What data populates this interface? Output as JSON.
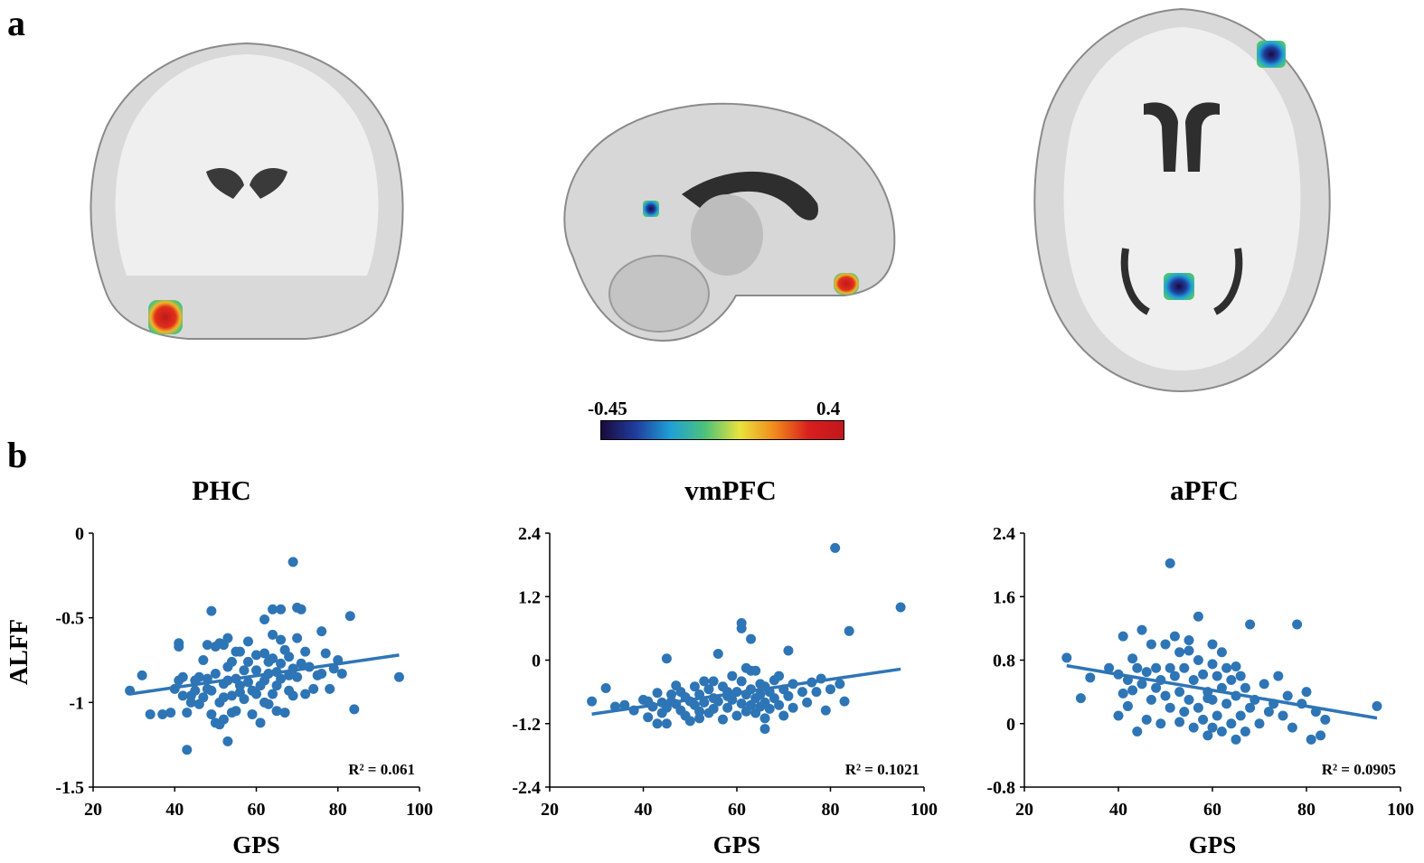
{
  "panels": {
    "a": "a",
    "b": "b"
  },
  "colorbar": {
    "min_label": "-0.45",
    "max_label": "0.4",
    "colors": [
      "#1a0a3c",
      "#1f3d9e",
      "#1fa0d6",
      "#4cc27a",
      "#e9e33c",
      "#f08a1c",
      "#d81e1e",
      "#c0181c"
    ]
  },
  "brain_images": [
    {
      "view": "coronal",
      "blobs": [
        {
          "color_scale": "hot"
        }
      ]
    },
    {
      "view": "sagittal",
      "blobs": [
        {
          "color_scale": "cool"
        },
        {
          "color_scale": "hot"
        }
      ]
    },
    {
      "view": "axial",
      "blobs": [
        {
          "color_scale": "cool"
        },
        {
          "color_scale": "cool"
        }
      ]
    }
  ],
  "ylabel": "ALFF",
  "point_color": "#2e75b6",
  "chart_data": [
    {
      "type": "scatter",
      "title": "PHC",
      "xlabel": "GPS",
      "ylabel": "ALFF",
      "xlim": [
        20,
        100
      ],
      "ylim": [
        -1.5,
        0
      ],
      "xticks": [
        "20",
        "40",
        "60",
        "80",
        "100"
      ],
      "yticks": [
        "-1.5",
        "-1",
        "-0.5",
        "0"
      ],
      "trendline": {
        "x": [
          29,
          95
        ],
        "y": [
          -0.95,
          -0.72
        ]
      },
      "annotation": "R² = 0.061",
      "points": [
        [
          29,
          -0.93
        ],
        [
          32,
          -0.84
        ],
        [
          34,
          -1.07
        ],
        [
          37,
          -1.07
        ],
        [
          39,
          -1.06
        ],
        [
          40,
          -0.92
        ],
        [
          41,
          -0.65
        ],
        [
          41,
          -0.67
        ],
        [
          41,
          -0.87
        ],
        [
          42,
          -0.96
        ],
        [
          42,
          -0.85
        ],
        [
          43,
          -1.28
        ],
        [
          43,
          -1.06
        ],
        [
          44,
          -0.96
        ],
        [
          44,
          -1.0
        ],
        [
          45,
          -0.87
        ],
        [
          45,
          -0.93
        ],
        [
          46,
          -0.85
        ],
        [
          46,
          -1.01
        ],
        [
          47,
          -0.75
        ],
        [
          47,
          -0.97
        ],
        [
          48,
          -0.86
        ],
        [
          48,
          -0.92
        ],
        [
          49,
          -0.46
        ],
        [
          49,
          -0.93
        ],
        [
          49,
          -1.07
        ],
        [
          50,
          -0.67
        ],
        [
          50,
          -0.83
        ],
        [
          50,
          -1.12
        ],
        [
          51,
          -0.65
        ],
        [
          51,
          -1.0
        ],
        [
          51,
          -1.13
        ],
        [
          52,
          -0.66
        ],
        [
          52,
          -0.89
        ],
        [
          52,
          -0.97
        ],
        [
          52,
          -1.1
        ],
        [
          53,
          -0.62
        ],
        [
          53,
          -0.79
        ],
        [
          53,
          -0.87
        ],
        [
          53,
          -1.23
        ],
        [
          54,
          -0.76
        ],
        [
          54,
          -0.96
        ],
        [
          54,
          -1.06
        ],
        [
          55,
          -0.7
        ],
        [
          55,
          -0.86
        ],
        [
          55,
          -1.05
        ],
        [
          56,
          -0.7
        ],
        [
          56,
          -0.94
        ],
        [
          57,
          -0.81
        ],
        [
          57,
          -0.98
        ],
        [
          58,
          -0.64
        ],
        [
          58,
          -0.76
        ],
        [
          58,
          -0.88
        ],
        [
          59,
          -0.93
        ],
        [
          59,
          -1.07
        ],
        [
          60,
          -0.72
        ],
        [
          60,
          -0.81
        ],
        [
          61,
          -0.9
        ],
        [
          61,
          -1.12
        ],
        [
          62,
          -0.51
        ],
        [
          62,
          -0.71
        ],
        [
          62,
          -0.87
        ],
        [
          63,
          -0.76
        ],
        [
          63,
          -0.83
        ],
        [
          63,
          -1.01
        ],
        [
          64,
          -0.45
        ],
        [
          64,
          -0.6
        ],
        [
          64,
          -0.74
        ],
        [
          64,
          -0.95
        ],
        [
          65,
          -0.82
        ],
        [
          65,
          -0.9
        ],
        [
          65,
          -1.05
        ],
        [
          66,
          -0.45
        ],
        [
          66,
          -0.63
        ],
        [
          66,
          -0.77
        ],
        [
          66,
          -0.86
        ],
        [
          67,
          -0.69
        ],
        [
          67,
          -1.06
        ],
        [
          68,
          -0.73
        ],
        [
          68,
          -0.84
        ],
        [
          68,
          -0.93
        ],
        [
          69,
          -0.17
        ],
        [
          69,
          -0.8
        ],
        [
          69,
          -0.96
        ],
        [
          70,
          -0.44
        ],
        [
          70,
          -0.62
        ],
        [
          70,
          -0.85
        ],
        [
          71,
          -0.45
        ],
        [
          71,
          -0.77
        ],
        [
          72,
          -0.7
        ],
        [
          72,
          -0.95
        ],
        [
          73,
          -0.79
        ],
        [
          74,
          -0.92
        ],
        [
          75,
          -0.84
        ],
        [
          76,
          -0.58
        ],
        [
          76,
          -0.83
        ],
        [
          77,
          -0.71
        ],
        [
          78,
          -0.92
        ],
        [
          79,
          -0.8
        ],
        [
          80,
          -0.75
        ],
        [
          81,
          -0.83
        ],
        [
          83,
          -0.49
        ],
        [
          84,
          -1.04
        ],
        [
          95,
          -0.85
        ],
        [
          48,
          -0.66
        ],
        [
          56,
          -0.9
        ],
        [
          60,
          -0.95
        ],
        [
          62,
          -1.0
        ]
      ]
    },
    {
      "type": "scatter",
      "title": "vmPFC",
      "xlabel": "GPS",
      "ylabel": "",
      "xlim": [
        20,
        100
      ],
      "ylim": [
        -2.4,
        2.4
      ],
      "xticks": [
        "20",
        "40",
        "60",
        "80",
        "100"
      ],
      "yticks": [
        "-2.4",
        "-1.2",
        "0",
        "1.2",
        "2.4"
      ],
      "trendline": {
        "x": [
          29,
          95
        ],
        "y": [
          -1.02,
          -0.17
        ]
      },
      "annotation": "R² = 0.1021",
      "points": [
        [
          29,
          -0.78
        ],
        [
          32,
          -0.53
        ],
        [
          34,
          -0.88
        ],
        [
          36,
          -0.85
        ],
        [
          38,
          -0.95
        ],
        [
          40,
          -0.75
        ],
        [
          41,
          -1.08
        ],
        [
          41,
          -0.78
        ],
        [
          42,
          -0.88
        ],
        [
          43,
          -0.62
        ],
        [
          43,
          -1.2
        ],
        [
          44,
          -0.8
        ],
        [
          44,
          -1.0
        ],
        [
          45,
          0.03
        ],
        [
          45,
          -0.9
        ],
        [
          45,
          -1.2
        ],
        [
          46,
          -0.65
        ],
        [
          46,
          -0.78
        ],
        [
          47,
          -0.48
        ],
        [
          47,
          -0.83
        ],
        [
          48,
          -0.6
        ],
        [
          48,
          -0.95
        ],
        [
          49,
          -0.7
        ],
        [
          49,
          -1.05
        ],
        [
          50,
          -0.78
        ],
        [
          50,
          -1.15
        ],
        [
          51,
          -0.5
        ],
        [
          51,
          -0.85
        ],
        [
          52,
          -0.65
        ],
        [
          52,
          -0.97
        ],
        [
          52,
          -1.1
        ],
        [
          53,
          -0.4
        ],
        [
          53,
          -0.8
        ],
        [
          54,
          -0.55
        ],
        [
          54,
          -1.0
        ],
        [
          55,
          -0.72
        ],
        [
          55,
          -0.92
        ],
        [
          56,
          0.12
        ],
        [
          56,
          -0.78
        ],
        [
          57,
          -0.5
        ],
        [
          57,
          -1.12
        ],
        [
          58,
          -0.68
        ],
        [
          58,
          -0.9
        ],
        [
          59,
          -0.3
        ],
        [
          59,
          -0.75
        ],
        [
          60,
          -0.6
        ],
        [
          60,
          -1.05
        ],
        [
          61,
          0.7
        ],
        [
          61,
          0.6
        ],
        [
          61,
          -0.4
        ],
        [
          61,
          -0.82
        ],
        [
          62,
          -0.15
        ],
        [
          62,
          -0.65
        ],
        [
          62,
          -0.97
        ],
        [
          63,
          0.4
        ],
        [
          63,
          -0.55
        ],
        [
          63,
          -0.85
        ],
        [
          64,
          -0.2
        ],
        [
          64,
          -0.72
        ],
        [
          64,
          -1.0
        ],
        [
          65,
          -0.45
        ],
        [
          65,
          -0.65
        ],
        [
          65,
          -0.88
        ],
        [
          66,
          -0.5
        ],
        [
          66,
          -0.8
        ],
        [
          66,
          -1.1
        ],
        [
          67,
          -0.6
        ],
        [
          67,
          -0.92
        ],
        [
          68,
          -0.38
        ],
        [
          68,
          -0.72
        ],
        [
          69,
          -0.3
        ],
        [
          69,
          -0.85
        ],
        [
          70,
          -0.55
        ],
        [
          70,
          -1.05
        ],
        [
          71,
          0.18
        ],
        [
          71,
          -0.68
        ],
        [
          72,
          -0.45
        ],
        [
          72,
          -0.9
        ],
        [
          74,
          -0.6
        ],
        [
          75,
          -0.8
        ],
        [
          76,
          -0.42
        ],
        [
          77,
          -0.6
        ],
        [
          78,
          -0.35
        ],
        [
          79,
          -0.95
        ],
        [
          80,
          -0.55
        ],
        [
          81,
          2.12
        ],
        [
          82,
          -0.45
        ],
        [
          83,
          -0.78
        ],
        [
          84,
          0.55
        ],
        [
          95,
          1.0
        ],
        [
          66,
          -1.3
        ],
        [
          58,
          -0.6
        ],
        [
          55,
          -0.4
        ],
        [
          63,
          -0.2
        ]
      ]
    },
    {
      "type": "scatter",
      "title": "aPFC",
      "xlabel": "GPS",
      "ylabel": "",
      "xlim": [
        20,
        100
      ],
      "ylim": [
        -0.8,
        2.4
      ],
      "xticks": [
        "20",
        "40",
        "60",
        "80",
        "100"
      ],
      "yticks": [
        "-0.8",
        "0",
        "0.8",
        "1.6",
        "2.4"
      ],
      "trendline": {
        "x": [
          29,
          95
        ],
        "y": [
          0.73,
          0.07
        ]
      },
      "annotation": "R² = 0.0905",
      "points": [
        [
          29,
          0.83
        ],
        [
          32,
          0.32
        ],
        [
          34,
          0.58
        ],
        [
          38,
          0.7
        ],
        [
          40,
          0.62
        ],
        [
          40,
          0.1
        ],
        [
          41,
          0.38
        ],
        [
          41,
          1.1
        ],
        [
          42,
          0.55
        ],
        [
          42,
          0.22
        ],
        [
          43,
          0.82
        ],
        [
          43,
          0.42
        ],
        [
          44,
          0.7
        ],
        [
          44,
          -0.1
        ],
        [
          45,
          1.18
        ],
        [
          45,
          0.5
        ],
        [
          46,
          0.65
        ],
        [
          46,
          0.05
        ],
        [
          47,
          1.0
        ],
        [
          47,
          0.3
        ],
        [
          48,
          0.7
        ],
        [
          48,
          0.45
        ],
        [
          49,
          0.55
        ],
        [
          49,
          0.0
        ],
        [
          50,
          1.0
        ],
        [
          50,
          0.35
        ],
        [
          51,
          2.02
        ],
        [
          51,
          0.7
        ],
        [
          51,
          0.2
        ],
        [
          52,
          1.1
        ],
        [
          52,
          0.6
        ],
        [
          53,
          0.9
        ],
        [
          53,
          0.4
        ],
        [
          53,
          0.02
        ],
        [
          54,
          0.7
        ],
        [
          54,
          0.15
        ],
        [
          55,
          1.05
        ],
        [
          55,
          0.3
        ],
        [
          56,
          0.55
        ],
        [
          56,
          -0.05
        ],
        [
          57,
          1.35
        ],
        [
          57,
          0.8
        ],
        [
          57,
          0.2
        ],
        [
          58,
          0.62
        ],
        [
          58,
          0.05
        ],
        [
          59,
          0.4
        ],
        [
          59,
          -0.15
        ],
        [
          60,
          1.0
        ],
        [
          60,
          0.75
        ],
        [
          60,
          0.3
        ],
        [
          61,
          0.6
        ],
        [
          61,
          0.1
        ],
        [
          62,
          0.9
        ],
        [
          62,
          0.45
        ],
        [
          62,
          -0.1
        ],
        [
          63,
          0.7
        ],
        [
          63,
          0.25
        ],
        [
          64,
          0.55
        ],
        [
          64,
          0.0
        ],
        [
          65,
          0.35
        ],
        [
          65,
          -0.2
        ],
        [
          66,
          0.6
        ],
        [
          66,
          0.1
        ],
        [
          67,
          0.45
        ],
        [
          67,
          -0.1
        ],
        [
          68,
          1.25
        ],
        [
          68,
          0.2
        ],
        [
          69,
          0.3
        ],
        [
          70,
          0.0
        ],
        [
          71,
          0.5
        ],
        [
          72,
          0.15
        ],
        [
          73,
          0.25
        ],
        [
          74,
          0.6
        ],
        [
          75,
          0.1
        ],
        [
          76,
          0.35
        ],
        [
          77,
          -0.05
        ],
        [
          78,
          1.25
        ],
        [
          79,
          0.25
        ],
        [
          80,
          0.4
        ],
        [
          81,
          -0.2
        ],
        [
          82,
          0.15
        ],
        [
          83,
          -0.15
        ],
        [
          84,
          0.05
        ],
        [
          95,
          0.22
        ],
        [
          55,
          0.92
        ],
        [
          60,
          -0.05
        ],
        [
          65,
          0.72
        ],
        [
          59,
          0.32
        ]
      ]
    }
  ]
}
